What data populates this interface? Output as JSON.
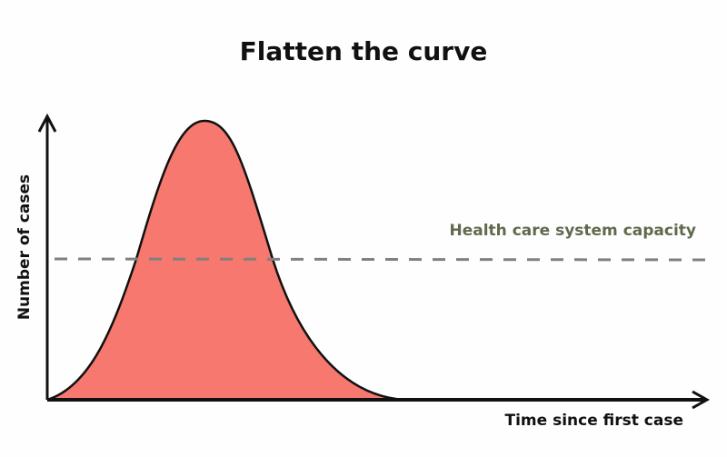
{
  "chart_data": {
    "type": "area",
    "title": "Flatten the curve",
    "xlabel": "Time since first case",
    "ylabel": "Number of cases",
    "annotation": "Health care system capacity",
    "grid": false,
    "colors": {
      "curve_fill": "#f6786f",
      "curve_stroke": "#111111",
      "capacity_line": "#808080",
      "annotation": "#5f6a4c",
      "axes": "#111111"
    }
  }
}
